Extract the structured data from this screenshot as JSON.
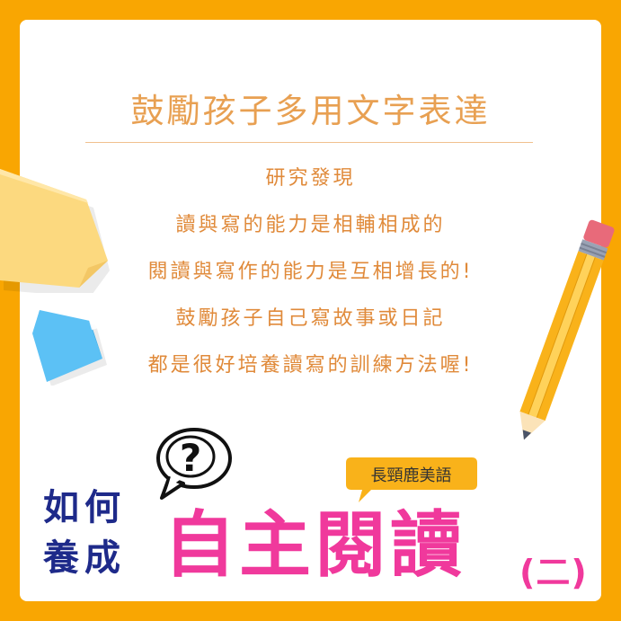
{
  "card": {
    "title": "鼓勵孩子多用文字表達",
    "lines": [
      "研究發現",
      "讀與寫的能力是相輔相成的",
      "閱讀與寫作的能力是互相增長的!",
      "鼓勵孩子自己寫故事或日記",
      "都是很好培養讀寫的訓練方法喔!"
    ]
  },
  "banner": {
    "brand": "長頸鹿美語",
    "question_mark": "?",
    "how_line1": "如何",
    "how_line2": "養成",
    "main_title": "自主閱讀",
    "part": "(二)"
  },
  "colors": {
    "background": "#F9A602",
    "card": "#FFFFFF",
    "title": "#E8A052",
    "body_text": "#E08A3A",
    "main_title": "#F0399C",
    "how_text": "#1E2A8A",
    "brand_badge": "#F9B21A"
  },
  "icons": [
    "sticky-note-yellow-icon",
    "sticky-note-blue-icon",
    "pencil-icon",
    "question-speech-bubble-icon"
  ]
}
